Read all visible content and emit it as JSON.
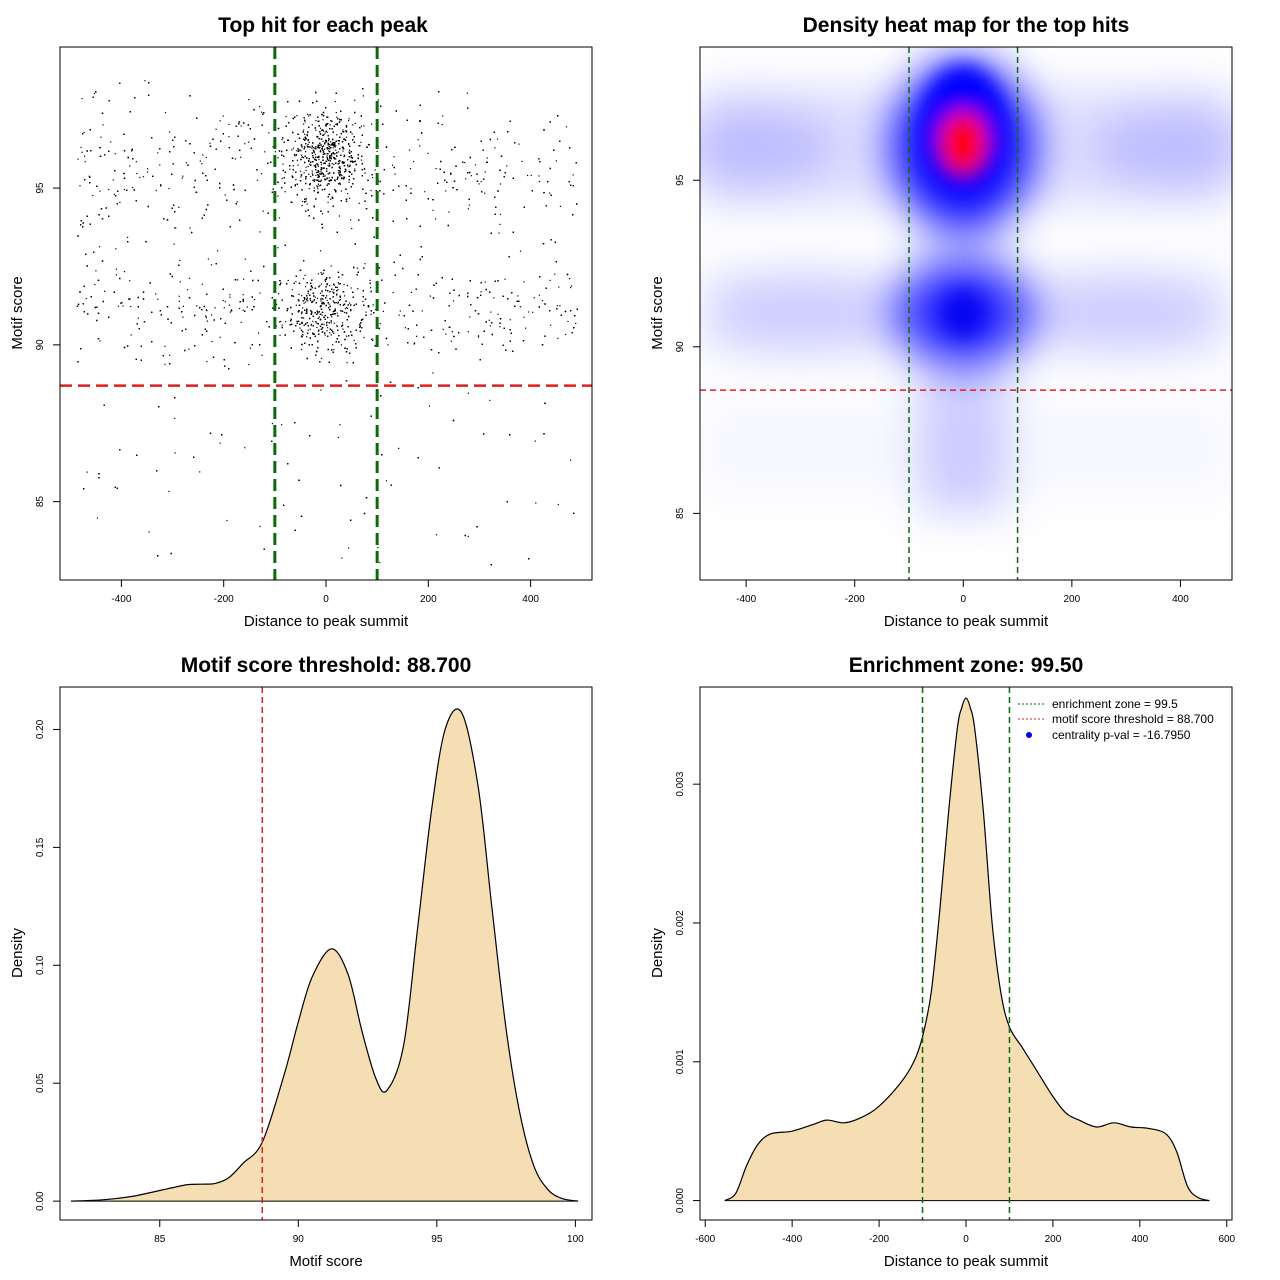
{
  "colors": {
    "points": "#000000",
    "threshold_line": "#dd2222",
    "zone_line": "#0b6b0b",
    "density_fill": "#f5deb3",
    "heat_blue": "#0000ff",
    "heat_red": "#ff0000",
    "legend_dot": "#0000ee"
  },
  "chart_data": [
    {
      "type": "scatter",
      "title": "Top hit for each peak",
      "xlabel": "Distance to peak summit",
      "ylabel": "Motif score",
      "xlim": [
        -520,
        520
      ],
      "ylim": [
        82.5,
        99.5
      ],
      "xticks": [
        -400,
        -200,
        0,
        200,
        400
      ],
      "yticks": [
        85,
        90,
        95
      ],
      "n_points": 6000,
      "point_distribution": "dense cluster near x=0 at scores ~96 and ~91; sparse background across x=-490..490, scores 83..98.5",
      "vlines": [
        -100,
        100
      ],
      "hline": 88.7
    },
    {
      "type": "heatmap",
      "title": "Density heat map for the top hits",
      "xlabel": "Distance to peak summit",
      "ylabel": "Motif score",
      "xlim": [
        -485,
        495
      ],
      "ylim": [
        83,
        99
      ],
      "xticks": [
        -400,
        -200,
        0,
        200,
        400
      ],
      "yticks": [
        85,
        90,
        95
      ],
      "hotspots": [
        {
          "x": 0,
          "y": 96,
          "intensity": 1.0
        },
        {
          "x": 0,
          "y": 91,
          "intensity": 0.8
        },
        {
          "x": -400,
          "y": 96,
          "intensity": 0.3
        },
        {
          "x": 400,
          "y": 96,
          "intensity": 0.3
        },
        {
          "x": -300,
          "y": 91,
          "intensity": 0.2
        },
        {
          "x": 300,
          "y": 91,
          "intensity": 0.2
        }
      ],
      "vlines": [
        -100,
        100
      ],
      "hline": 88.7
    },
    {
      "type": "area",
      "title": "Motif score threshold: 88.700",
      "xlabel": "Motif score",
      "ylabel": "Density",
      "xlim": [
        81.4,
        100.6
      ],
      "ylim": [
        -0.008,
        0.218
      ],
      "xticks": [
        85,
        90,
        95,
        100
      ],
      "yticks": [
        0.0,
        0.05,
        0.1,
        0.15,
        0.2
      ],
      "ytick_labels": [
        "0.00",
        "0.05",
        "0.10",
        "0.15",
        "0.20"
      ],
      "x": [
        81.8,
        83,
        84,
        85,
        85.5,
        86,
        86.5,
        87,
        87.5,
        88,
        88.7,
        89.5,
        90,
        90.5,
        91.2,
        91.8,
        92.3,
        92.8,
        93.2,
        93.8,
        94.3,
        94.8,
        95.3,
        95.9,
        96.5,
        97,
        97.5,
        98,
        98.5,
        99,
        99.5,
        100.1
      ],
      "y": [
        0.0,
        0.0006,
        0.002,
        0.0045,
        0.0058,
        0.007,
        0.0072,
        0.0075,
        0.01,
        0.016,
        0.025,
        0.054,
        0.076,
        0.095,
        0.107,
        0.096,
        0.072,
        0.052,
        0.047,
        0.066,
        0.115,
        0.165,
        0.2,
        0.207,
        0.175,
        0.123,
        0.073,
        0.037,
        0.015,
        0.005,
        0.0012,
        0.0
      ],
      "vline": 88.7
    },
    {
      "type": "area",
      "title": "Enrichment zone: 99.50",
      "xlabel": "Distance to peak summit",
      "ylabel": "Density",
      "xlim": [
        -612,
        612
      ],
      "ylim": [
        -0.00014,
        0.0037
      ],
      "xticks": [
        -600,
        -400,
        -200,
        0,
        200,
        400,
        600
      ],
      "yticks": [
        0.0,
        0.001,
        0.002,
        0.003
      ],
      "ytick_labels": [
        "0.000",
        "0.001",
        "0.002",
        "0.003"
      ],
      "x": [
        -555,
        -530,
        -505,
        -480,
        -450,
        -400,
        -350,
        -320,
        -280,
        -240,
        -200,
        -150,
        -120,
        -100,
        -80,
        -60,
        -40,
        -20,
        -10,
        0,
        10,
        20,
        40,
        60,
        80,
        100,
        130,
        160,
        200,
        230,
        260,
        300,
        340,
        380,
        420,
        460,
        485,
        510,
        535,
        560
      ],
      "y": [
        0.0,
        5e-05,
        0.00025,
        0.0004,
        0.00048,
        0.0005,
        0.00055,
        0.00058,
        0.00056,
        0.0006,
        0.00068,
        0.00085,
        0.001,
        0.00118,
        0.0015,
        0.0021,
        0.0028,
        0.0034,
        0.00355,
        0.00362,
        0.00355,
        0.0034,
        0.0028,
        0.002,
        0.0015,
        0.00125,
        0.0011,
        0.00095,
        0.00075,
        0.00063,
        0.00058,
        0.00053,
        0.00056,
        0.00053,
        0.00052,
        0.00048,
        0.00035,
        0.0001,
        2e-05,
        0.0
      ],
      "vlines": [
        -100,
        100
      ],
      "legend": {
        "position": "top-right",
        "entries": [
          {
            "label": "enrichment zone = 99.5",
            "style": "dotted-green"
          },
          {
            "label": "motif score threshold = 88.700",
            "style": "dotted-red"
          },
          {
            "label": "centrality p-val = -16.7950",
            "style": "blue-dot"
          }
        ]
      }
    }
  ]
}
